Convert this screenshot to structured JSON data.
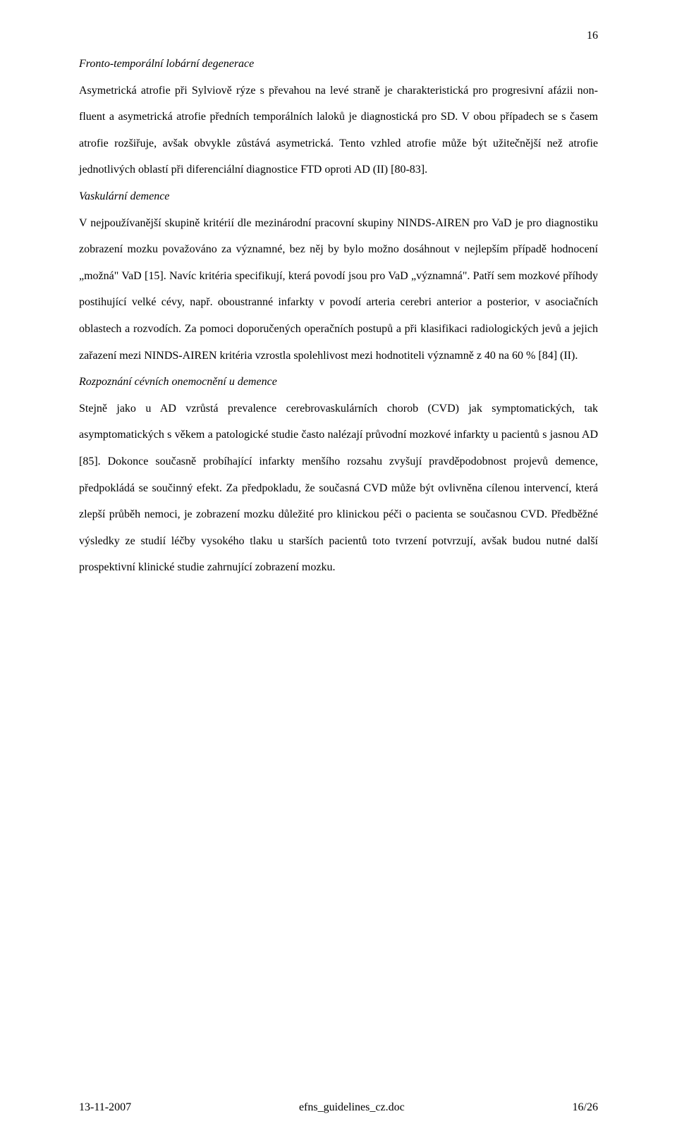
{
  "page": {
    "number_top": "16"
  },
  "sections": {
    "ftd": {
      "heading": "Fronto-temporální lobární degenerace",
      "body": "Asymetrická atrofie při Sylviově rýze s převahou na levé straně je charakteristická pro progresivní afázii non-fluent a asymetrická atrofie předních temporálních laloků je diagnostická pro SD. V obou případech se s časem atrofie rozšiřuje, avšak obvykle zůstává asymetrická. Tento vzhled atrofie může být užitečnější než atrofie jednotlivých oblastí při diferenciální diagnostice FTD oproti AD (II) [80-83]."
    },
    "vad": {
      "heading": "Vaskulární demence",
      "body": "V nejpoužívanější skupině kritérií dle mezinárodní pracovní skupiny NINDS-AIREN pro VaD je pro diagnostiku zobrazení mozku považováno za významné, bez něj by bylo možno dosáhnout v nejlepším případě hodnocení „možná\" VaD [15]. Navíc kritéria specifikují, která povodí jsou pro VaD „významná\". Patří sem mozkové příhody postihující velké cévy, např. oboustranné infarkty v povodí arteria cerebri anterior a posterior, v asociačních oblastech a rozvodích. Za pomoci doporučených operačních postupů a při klasifikaci radiologických jevů a jejich zařazení mezi NINDS-AIREN kritéria vzrostla spolehlivost mezi hodnotiteli významně z 40 na 60 % [84] (II)."
    },
    "cvd": {
      "heading": "Rozpoznání cévních onemocnění u demence",
      "body": "Stejně jako u AD vzrůstá prevalence cerebrovaskulárních chorob (CVD) jak symptomatických, tak asymptomatických s věkem a patologické studie často nalézají průvodní mozkové infarkty u pacientů s jasnou AD [85]. Dokonce současně probíhající infarkty menšího rozsahu zvyšují pravděpodobnost projevů demence, předpokládá se součinný efekt. Za předpokladu, že současná CVD může být ovlivněna cílenou intervencí, která zlepší průběh nemoci, je zobrazení mozku důležité pro klinickou péči o pacienta se současnou CVD. Předběžné výsledky ze studií léčby vysokého tlaku u starších pacientů toto tvrzení potvrzují, avšak budou nutné další prospektivní klinické studie zahrnující zobrazení mozku."
    }
  },
  "footer": {
    "left": "13-11-2007",
    "center": "efns_guidelines_cz.doc",
    "right": "16/26"
  }
}
